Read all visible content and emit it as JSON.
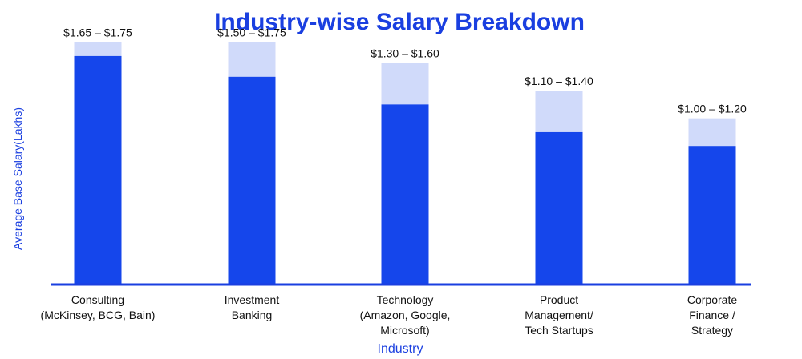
{
  "chart_data": {
    "type": "bar",
    "title": "Industry-wise Salary Breakdown",
    "xlabel": "Industry",
    "ylabel": "Average Base Salary(Lakhs)",
    "grid": false,
    "legend": "none",
    "ylim": [
      0,
      1.8
    ],
    "categories": [
      [
        "Consulting",
        "(McKinsey, BCG, Bain)"
      ],
      [
        "Investment",
        "Banking"
      ],
      [
        "Technology",
        "(Amazon, Google,",
        "Microsoft)"
      ],
      [
        "Product",
        "Management/",
        "Tech Startups"
      ],
      [
        "Corporate",
        "Finance /",
        "Strategy"
      ]
    ],
    "series": [
      {
        "values": [
          1.65,
          1.5,
          1.3,
          1.1,
          1.0
        ]
      },
      {
        "values": [
          1.75,
          1.75,
          1.6,
          1.4,
          1.2
        ]
      }
    ],
    "data_labels": [
      "$1.65 – $1.75",
      "$1.50 – $1.75",
      "$1.30 – $1.60",
      "$1.10 – $1.40",
      "$1.00 – $1.20"
    ],
    "colors": {
      "title": "#1a3fe0",
      "axis_label": "#1a3fe0",
      "bar_low": "#1546eb",
      "bar_range": "#d0dafa",
      "axis_line": "#1a3fe0",
      "text": "#111111"
    }
  }
}
